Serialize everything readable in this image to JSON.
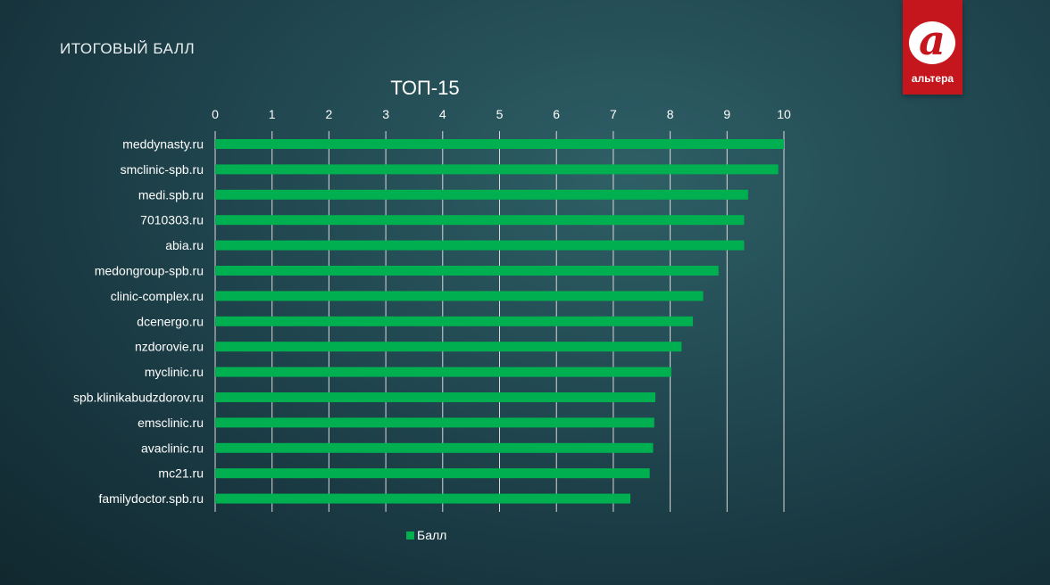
{
  "slide": {
    "title": "ИТОГОВЫЙ БАЛЛ"
  },
  "logo": {
    "text": "альтера",
    "glyph": "a"
  },
  "colors": {
    "bar": "#00b050",
    "grid": "#d9d9d9",
    "text": "#ffffff",
    "logo": "#c4161c"
  },
  "chart_data": {
    "type": "bar",
    "orientation": "horizontal",
    "title": "ТОП-15",
    "xlabel": "",
    "ylabel": "",
    "xlim": [
      0,
      10
    ],
    "ticks": [
      0,
      1,
      2,
      3,
      4,
      5,
      6,
      7,
      8,
      9,
      10
    ],
    "grid": true,
    "legend_position": "bottom",
    "categories": [
      "meddynasty.ru",
      "smclinic-spb.ru",
      "medi.spb.ru",
      "7010303.ru",
      "abia.ru",
      "medongroup-spb.ru",
      "clinic-complex.ru",
      "dcenergo.ru",
      "nzdorovie.ru",
      "myclinic.ru",
      "spb.klinikabudzdorov.ru",
      "emsclinic.ru",
      "avaclinic.ru",
      "mc21.ru",
      "familydoctor.spb.ru"
    ],
    "series": [
      {
        "name": "Балл",
        "values": [
          10.0,
          9.9,
          9.37,
          9.3,
          9.3,
          8.85,
          8.58,
          8.4,
          8.2,
          8.02,
          7.74,
          7.72,
          7.7,
          7.64,
          7.3
        ]
      }
    ]
  }
}
